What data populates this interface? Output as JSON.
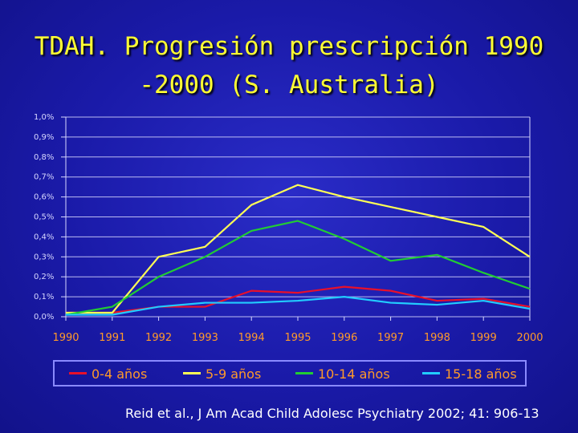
{
  "title_line1": "TDAH. Progresión prescripción 1990",
  "title_line2": "-2000 (S. Australia)",
  "source": "Reid et al., J Am Acad Child Adolesc Psychiatry 2002; 41: 906-13",
  "colors": {
    "title": "#ffff33",
    "axis": "#d8d8ff",
    "grid": "#d8d8ff",
    "x_ticks": "#ff9a2a"
  },
  "chart_data": {
    "type": "line",
    "title": "",
    "xlabel": "",
    "ylabel": "",
    "categories": [
      "1990",
      "1991",
      "1992",
      "1993",
      "1994",
      "1995",
      "1996",
      "1997",
      "1998",
      "1999",
      "2000"
    ],
    "y_tick_labels": [
      "0,0%",
      "0,1%",
      "0,2%",
      "0,3%",
      "0,4%",
      "0,5%",
      "0,6%",
      "0,7%",
      "0,8%",
      "0,9%",
      "1,0%"
    ],
    "ylim": [
      0,
      1.0
    ],
    "grid": true,
    "legend_position": "bottom",
    "series": [
      {
        "name": "0-4 años",
        "color": "#e8102a",
        "values": [
          0.02,
          0.02,
          0.05,
          0.05,
          0.13,
          0.12,
          0.15,
          0.13,
          0.08,
          0.09,
          0.05
        ]
      },
      {
        "name": "5-9 años",
        "color": "#ffff55",
        "values": [
          0.02,
          0.02,
          0.3,
          0.35,
          0.56,
          0.66,
          0.6,
          0.55,
          0.5,
          0.45,
          0.3
        ]
      },
      {
        "name": "10-14 años",
        "color": "#22cc33",
        "values": [
          0.01,
          0.05,
          0.2,
          0.3,
          0.43,
          0.48,
          0.39,
          0.28,
          0.31,
          0.22,
          0.14
        ]
      },
      {
        "name": "15-18 años",
        "color": "#22ccff",
        "values": [
          0.01,
          0.01,
          0.05,
          0.07,
          0.07,
          0.08,
          0.1,
          0.07,
          0.06,
          0.08,
          0.04
        ]
      }
    ]
  }
}
